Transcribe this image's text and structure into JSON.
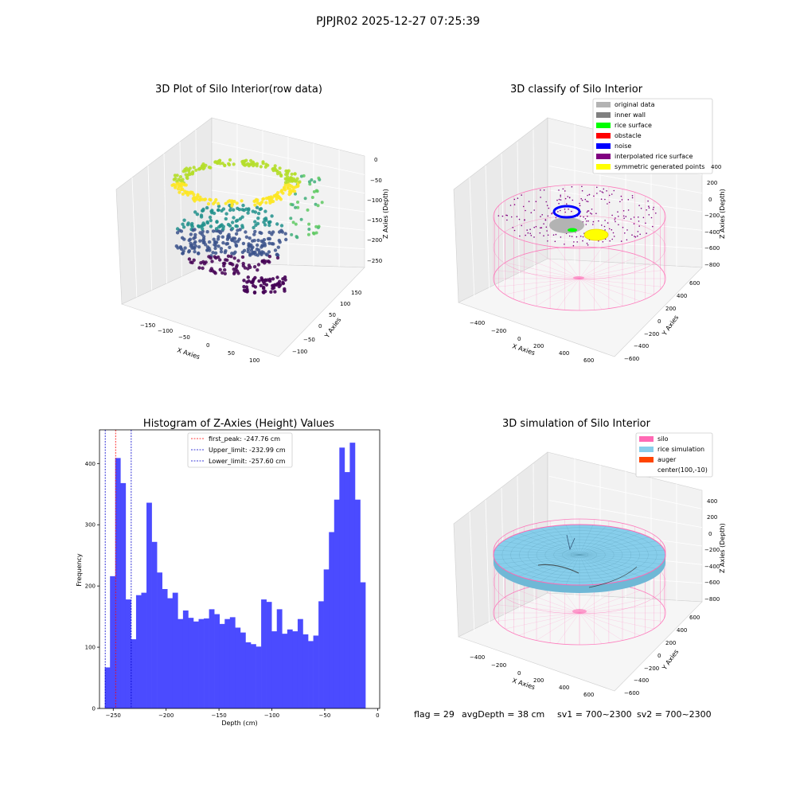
{
  "figure": {
    "suptitle": "PJPJR02 2025-12-27 07:25:39",
    "footer": {
      "flag": "flag = 29",
      "avg_depth": "avgDepth = 38 cm",
      "sv1": "sv1 = 700~2300",
      "sv2": "sv2 = 700~2300"
    }
  },
  "colors": {
    "original_data": "#b3b3b3",
    "inner_wall": "#808080",
    "rice_surface": "#00ff00",
    "obstacle": "#ff0000",
    "noise": "#0000ff",
    "interpolated_rice_surface": "#800080",
    "symmetric_generated_points": "#ffff00",
    "silo": "#ff69b4",
    "rice_simulation": "#87ceeb",
    "auger": "#ff4500",
    "histogram_bar": "#4b4bff",
    "first_peak_line": "#ff0000",
    "limit_line": "#0000cc"
  },
  "chart_data": [
    {
      "type": "scatter",
      "subtype": "3d",
      "title": "3D Plot of Silo Interior(row data)",
      "xlabel": "X Axies",
      "ylabel": "Y Axies",
      "zlabel": "Z Axies (Depth)",
      "x_ticks": [
        "−150",
        "−100",
        "−50",
        "0",
        "50",
        "100"
      ],
      "y_ticks": [
        "−100",
        "−50",
        "0",
        "50",
        "100",
        "150"
      ],
      "z_ticks": [
        "0",
        "−50",
        "−100",
        "−150",
        "−200",
        "−250"
      ],
      "xlim": [
        -180,
        120
      ],
      "ylim": [
        -120,
        170
      ],
      "zlim": [
        -280,
        0
      ],
      "colormap": "viridis"
    },
    {
      "type": "scatter",
      "subtype": "3d",
      "title": "3D classify of Silo Interior",
      "xlabel": "X Axies",
      "ylabel": "Y Axies",
      "zlabel": "Z Axies (Depth)",
      "x_ticks": [
        "−400",
        "−200",
        "0",
        "200",
        "400",
        "600"
      ],
      "y_ticks": [
        "−600",
        "−400",
        "−200",
        "0",
        "200",
        "400",
        "600"
      ],
      "z_ticks": [
        "400",
        "200",
        "0",
        "−200",
        "−400",
        "−600",
        "−800"
      ],
      "legend": [
        "original data",
        "inner wall",
        "rice surface",
        "obstacle",
        "noise",
        "interpolated rice surface",
        "symmetric generated points"
      ],
      "legend_position": "top-right"
    },
    {
      "type": "bar",
      "subtype": "histogram",
      "title": "Histogram of Z-Axies (Height) Values",
      "xlabel": "Depth (cm)",
      "ylabel": "Frequency",
      "xlim": [
        -263,
        2
      ],
      "ylim": [
        0,
        455
      ],
      "x_ticks": [
        -250,
        -200,
        -150,
        -100,
        -50,
        0
      ],
      "x_tick_labels": [
        "−250",
        "−200",
        "−150",
        "−100",
        "−50",
        "0"
      ],
      "y_ticks": [
        0,
        100,
        200,
        300,
        400
      ],
      "y_tick_labels": [
        "0",
        "100",
        "200",
        "300",
        "400"
      ],
      "bin_start": -258.0,
      "bin_width": 4.93,
      "values": [
        67,
        216,
        409,
        368,
        178,
        113,
        185,
        189,
        336,
        272,
        222,
        195,
        180,
        189,
        146,
        160,
        148,
        142,
        146,
        147,
        162,
        154,
        138,
        146,
        149,
        132,
        124,
        108,
        105,
        101,
        178,
        174,
        126,
        162,
        122,
        129,
        126,
        146,
        121,
        110,
        119,
        175,
        227,
        288,
        341,
        426,
        386,
        434,
        341,
        206
      ],
      "vlines": [
        {
          "label": "first_peak: -247.76 cm",
          "x": -247.76,
          "color": "#ff0000"
        },
        {
          "label": "Upper_limit: -232.99 cm",
          "x": -232.99,
          "color": "#0000cc"
        },
        {
          "label": "Lower_limit: -257.60 cm",
          "x": -257.6,
          "color": "#0000cc"
        }
      ],
      "legend_position": "top-center"
    },
    {
      "type": "scatter",
      "subtype": "3d-surface",
      "title": "3D simulation of Silo Interior",
      "xlabel": "X Axies",
      "ylabel": "Y Axies",
      "zlabel": "Z Axies (Depth)",
      "x_ticks": [
        "−400",
        "−200",
        "0",
        "200",
        "400",
        "600"
      ],
      "y_ticks": [
        "−600",
        "−400",
        "−200",
        "0",
        "200",
        "400",
        "600"
      ],
      "z_ticks": [
        "400",
        "200",
        "0",
        "−200",
        "−400",
        "−600",
        "−800"
      ],
      "legend": [
        "silo",
        "rice simulation",
        "auger",
        "center(100,-10)"
      ],
      "legend_position": "top-right"
    }
  ]
}
